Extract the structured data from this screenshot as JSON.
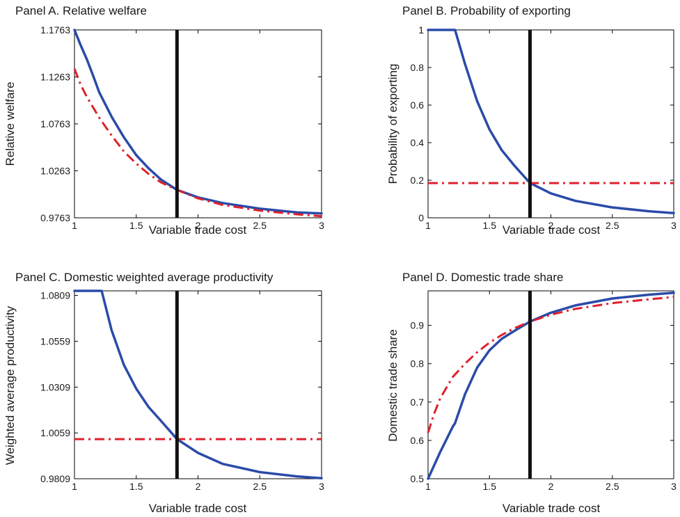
{
  "colors": {
    "model_line": "#2a4ba8",
    "alt_line": "#e0202a",
    "reference_line": "#111111",
    "axis": "#000000"
  },
  "chart_data": [
    {
      "type": "line",
      "title": "Panel A. Relative welfare",
      "xlabel": "Variable trade cost",
      "ylabel": "Relative welfare",
      "xlim": [
        1,
        3
      ],
      "ylim": [
        0.9763,
        1.1763
      ],
      "xticks": [
        1,
        1.5,
        2,
        2.5,
        3
      ],
      "xtick_labels": [
        "1",
        "1.5",
        "2",
        "2.5",
        "3"
      ],
      "yticks": [
        0.9763,
        1.0263,
        1.0763,
        1.1263,
        1.1763
      ],
      "ytick_labels": [
        "0.9763",
        "1.0263",
        "1.0763",
        "1.1263",
        "1.1763"
      ],
      "vline": 1.83,
      "series": [
        {
          "style": "solid",
          "color": "#2a4ba8",
          "x": [
            1,
            1.05,
            1.1,
            1.15,
            1.2,
            1.3,
            1.4,
            1.5,
            1.6,
            1.7,
            1.83,
            2,
            2.2,
            2.5,
            2.8,
            3
          ],
          "y": [
            1.1763,
            1.16,
            1.145,
            1.128,
            1.11,
            1.084,
            1.062,
            1.043,
            1.029,
            1.017,
            1.006,
            0.998,
            0.992,
            0.986,
            0.982,
            0.981
          ]
        },
        {
          "style": "dashdot",
          "color": "#e0202a",
          "x": [
            1,
            1.05,
            1.1,
            1.2,
            1.3,
            1.4,
            1.5,
            1.6,
            1.7,
            1.83,
            2,
            2.2,
            2.5,
            2.8,
            3
          ],
          "y": [
            1.135,
            1.118,
            1.105,
            1.083,
            1.064,
            1.047,
            1.034,
            1.023,
            1.014,
            1.006,
            0.997,
            0.99,
            0.984,
            0.98,
            0.978
          ]
        }
      ]
    },
    {
      "type": "line",
      "title": "Panel B. Probability of exporting",
      "xlabel": "Variable trade cost",
      "ylabel": "Probability of exporting",
      "xlim": [
        1,
        3
      ],
      "ylim": [
        0,
        1
      ],
      "xticks": [
        1,
        1.5,
        2,
        2.5,
        3
      ],
      "xtick_labels": [
        "1",
        "1.5",
        "2",
        "2.5",
        "3"
      ],
      "yticks": [
        0,
        0.2,
        0.4,
        0.6,
        0.8,
        1
      ],
      "ytick_labels": [
        "0",
        "0.2",
        "0.4",
        "0.6",
        "0.8",
        "1"
      ],
      "vline": 1.83,
      "series": [
        {
          "style": "solid",
          "color": "#2a4ba8",
          "x": [
            1,
            1.1,
            1.2,
            1.22,
            1.3,
            1.4,
            1.5,
            1.6,
            1.7,
            1.83,
            2,
            2.2,
            2.5,
            2.8,
            3
          ],
          "y": [
            1,
            1,
            1,
            1,
            0.82,
            0.62,
            0.47,
            0.36,
            0.28,
            0.185,
            0.13,
            0.09,
            0.055,
            0.035,
            0.025
          ]
        },
        {
          "style": "dashdot",
          "color": "#e0202a",
          "x": [
            1,
            3
          ],
          "y": [
            0.185,
            0.185
          ]
        }
      ]
    },
    {
      "type": "line",
      "title": "Panel C. Domestic weighted average productivity",
      "xlabel": "Variable trade cost",
      "ylabel": "Weighted average productivity",
      "xlim": [
        1,
        3
      ],
      "ylim": [
        0.9809,
        1.0834
      ],
      "xticks": [
        1,
        1.5,
        2,
        2.5,
        3
      ],
      "xtick_labels": [
        "1",
        "1.5",
        "2",
        "2.5",
        "3"
      ],
      "yticks": [
        0.9809,
        1.0059,
        1.0309,
        1.0559,
        1.0809
      ],
      "ytick_labels": [
        "0.9809",
        "1.0059",
        "1.0309",
        "1.0559",
        "1.0809"
      ],
      "vline": 1.83,
      "series": [
        {
          "style": "solid",
          "color": "#2a4ba8",
          "x": [
            1,
            1.1,
            1.2,
            1.22,
            1.3,
            1.4,
            1.5,
            1.6,
            1.7,
            1.83,
            2,
            2.2,
            2.5,
            2.8,
            3
          ],
          "y": [
            1.0834,
            1.0834,
            1.0834,
            1.0834,
            1.062,
            1.043,
            1.03,
            1.02,
            1.0125,
            1.0025,
            0.995,
            0.989,
            0.9845,
            0.9822,
            0.9812
          ]
        },
        {
          "style": "dashdot",
          "color": "#e0202a",
          "x": [
            1,
            3
          ],
          "y": [
            1.0025,
            1.0025
          ]
        }
      ]
    },
    {
      "type": "line",
      "title": "Panel D. Domestic trade share",
      "xlabel": "Variable trade cost",
      "ylabel": "Domestic trade share",
      "xlim": [
        1,
        3
      ],
      "ylim": [
        0.5,
        0.99
      ],
      "xticks": [
        1,
        1.5,
        2,
        2.5,
        3
      ],
      "xtick_labels": [
        "1",
        "1.5",
        "2",
        "2.5",
        "3"
      ],
      "yticks": [
        0.5,
        0.6,
        0.7,
        0.8,
        0.9
      ],
      "ytick_labels": [
        "0.5",
        "0.6",
        "0.7",
        "0.8",
        "0.9"
      ],
      "vline": 1.83,
      "series": [
        {
          "style": "solid",
          "color": "#2a4ba8",
          "x": [
            1,
            1.1,
            1.2,
            1.22,
            1.3,
            1.4,
            1.5,
            1.6,
            1.7,
            1.83,
            2,
            2.2,
            2.5,
            2.8,
            3
          ],
          "y": [
            0.5,
            0.57,
            0.635,
            0.645,
            0.72,
            0.79,
            0.835,
            0.865,
            0.885,
            0.91,
            0.933,
            0.952,
            0.97,
            0.98,
            0.985
          ]
        },
        {
          "style": "dashdot",
          "color": "#e0202a",
          "x": [
            1,
            1.05,
            1.1,
            1.2,
            1.3,
            1.4,
            1.5,
            1.6,
            1.7,
            1.83,
            2,
            2.2,
            2.5,
            2.8,
            3
          ],
          "y": [
            0.62,
            0.67,
            0.71,
            0.765,
            0.8,
            0.83,
            0.855,
            0.875,
            0.892,
            0.91,
            0.928,
            0.943,
            0.958,
            0.968,
            0.974
          ]
        }
      ]
    }
  ]
}
